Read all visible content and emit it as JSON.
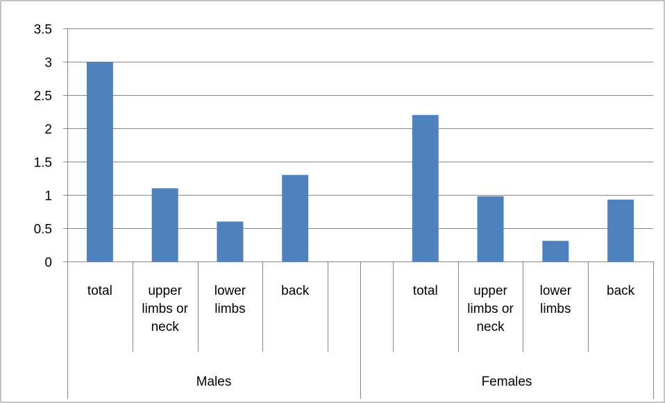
{
  "chart_data": {
    "type": "bar",
    "ylim": [
      0,
      3.5
    ],
    "y_ticks": [
      "0",
      "0.5",
      "1",
      "1.5",
      "2",
      "2.5",
      "3",
      "3.5"
    ],
    "grid": true,
    "legend": "none",
    "bar_color": "#4f81bd",
    "groups": [
      {
        "label": "Males",
        "categories": [
          {
            "label_lines": [
              "total"
            ],
            "value": 3.0
          },
          {
            "label_lines": [
              "upper",
              "limbs or",
              "neck"
            ],
            "value": 1.1
          },
          {
            "label_lines": [
              "lower",
              "limbs"
            ],
            "value": 0.6
          },
          {
            "label_lines": [
              "back"
            ],
            "value": 1.3
          }
        ]
      },
      {
        "label": "Females",
        "categories": [
          {
            "label_lines": [
              "total"
            ],
            "value": 2.2
          },
          {
            "label_lines": [
              "upper",
              "limbs or",
              "neck"
            ],
            "value": 0.98
          },
          {
            "label_lines": [
              "lower",
              "limbs"
            ],
            "value": 0.31
          },
          {
            "label_lines": [
              "back"
            ],
            "value": 0.93
          }
        ]
      }
    ]
  }
}
